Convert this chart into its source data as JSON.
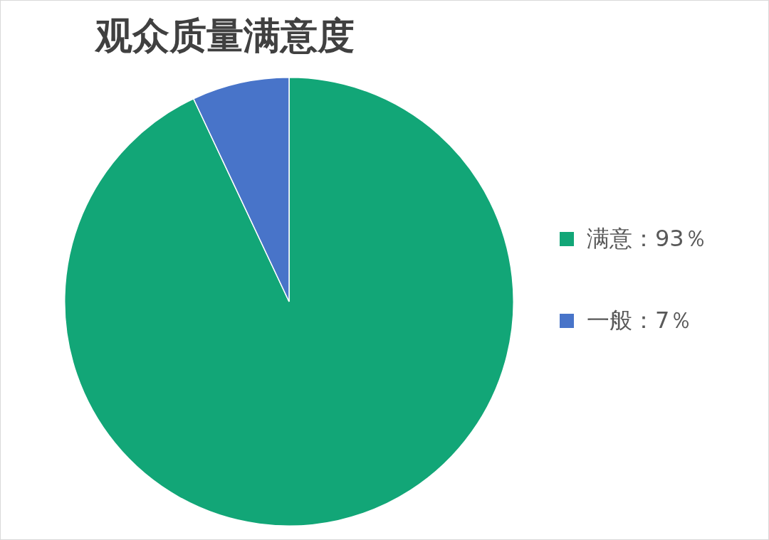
{
  "chart_data": {
    "type": "pie",
    "title": "观众质量满意度",
    "categories": [
      "满意：93％",
      "一般：7％"
    ],
    "values": [
      93,
      7
    ],
    "colors": [
      "#12a677",
      "#4874c9"
    ],
    "legend": "right"
  }
}
